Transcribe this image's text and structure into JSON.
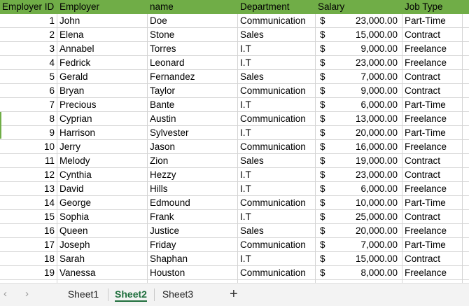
{
  "columns": [
    "Employer ID",
    "Employer",
    "name",
    "Department",
    "Salary",
    "Job Type"
  ],
  "currency_symbol": "$",
  "rows": [
    {
      "id": "1",
      "employer": "John",
      "name": "Doe",
      "department": "Communication",
      "salary": "23,000.00",
      "job_type": "Part-Time"
    },
    {
      "id": "2",
      "employer": "Elena",
      "name": "Stone",
      "department": "Sales",
      "salary": "15,000.00",
      "job_type": "Contract"
    },
    {
      "id": "3",
      "employer": "Annabel",
      "name": "Torres",
      "department": "I.T",
      "salary": "9,000.00",
      "job_type": "Freelance"
    },
    {
      "id": "4",
      "employer": "Fedrick",
      "name": "Leonard",
      "department": "I.T",
      "salary": "23,000.00",
      "job_type": "Freelance"
    },
    {
      "id": "5",
      "employer": "Gerald",
      "name": "Fernandez",
      "department": "Sales",
      "salary": "7,000.00",
      "job_type": "Contract"
    },
    {
      "id": "6",
      "employer": "Bryan",
      "name": "Taylor",
      "department": "Communication",
      "salary": "9,000.00",
      "job_type": "Contract"
    },
    {
      "id": "7",
      "employer": "Precious",
      "name": "Bante",
      "department": "I.T",
      "salary": "6,000.00",
      "job_type": "Part-Time"
    },
    {
      "id": "8",
      "employer": "Cyprian",
      "name": "Austin",
      "department": "Communication",
      "salary": "13,000.00",
      "job_type": "Freelance"
    },
    {
      "id": "9",
      "employer": "Harrison",
      "name": "Sylvester",
      "department": "I.T",
      "salary": "20,000.00",
      "job_type": "Part-Time"
    },
    {
      "id": "10",
      "employer": "Jerry",
      "name": "Jason",
      "department": "Communication",
      "salary": "16,000.00",
      "job_type": "Freelance"
    },
    {
      "id": "11",
      "employer": "Melody",
      "name": "Zion",
      "department": "Sales",
      "salary": "19,000.00",
      "job_type": "Contract"
    },
    {
      "id": "12",
      "employer": "Cynthia",
      "name": "Hezzy",
      "department": "I.T",
      "salary": "23,000.00",
      "job_type": "Contract"
    },
    {
      "id": "13",
      "employer": "David",
      "name": "Hills",
      "department": "I.T",
      "salary": "6,000.00",
      "job_type": "Freelance"
    },
    {
      "id": "14",
      "employer": "George",
      "name": "Edmound",
      "department": "Communication",
      "salary": "10,000.00",
      "job_type": "Part-Time"
    },
    {
      "id": "15",
      "employer": "Sophia",
      "name": "Frank",
      "department": "I.T",
      "salary": "25,000.00",
      "job_type": "Contract"
    },
    {
      "id": "16",
      "employer": "Queen",
      "name": "Justice",
      "department": "Sales",
      "salary": "20,000.00",
      "job_type": "Freelance"
    },
    {
      "id": "17",
      "employer": "Joseph",
      "name": "Friday",
      "department": "Communication",
      "salary": "7,000.00",
      "job_type": "Part-Time"
    },
    {
      "id": "18",
      "employer": "Sarah",
      "name": "Shaphan",
      "department": "I.T",
      "salary": "15,000.00",
      "job_type": "Contract"
    },
    {
      "id": "19",
      "employer": "Vanessa",
      "name": "Houston",
      "department": "Communication",
      "salary": "8,000.00",
      "job_type": "Freelance"
    }
  ],
  "header_color": "#70ad47",
  "sheet_tabs": [
    "Sheet1",
    "Sheet2",
    "Sheet3"
  ],
  "active_sheet": "Sheet2",
  "nav": {
    "prev_icon": "‹",
    "next_icon": "›",
    "add_icon": "+"
  },
  "accent_color": "#1e6e3c"
}
